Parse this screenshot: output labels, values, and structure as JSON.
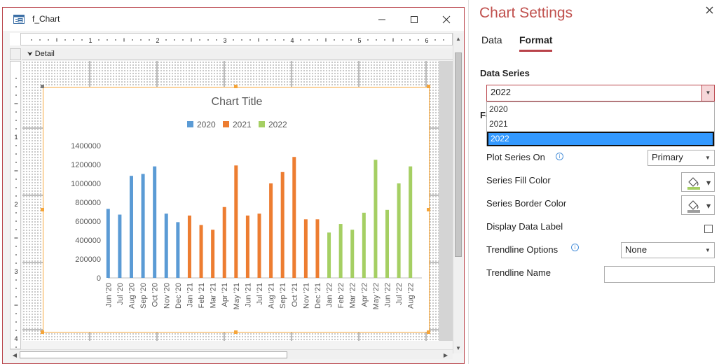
{
  "form": {
    "title": "f_Chart",
    "section": "Detail",
    "ruler_h_marks": [
      "1",
      "2",
      "3",
      "4",
      "5",
      "6"
    ],
    "ruler_v_marks": [
      "1",
      "2",
      "3",
      "4"
    ]
  },
  "chart_data": {
    "type": "bar",
    "title": "Chart Title",
    "legend_position": "top",
    "ylim": [
      0,
      1400000
    ],
    "yticks": [
      "1400000",
      "1200000",
      "1000000",
      "800000",
      "600000",
      "400000",
      "200000",
      "0"
    ],
    "categories": [
      "Jun '20",
      "Jul '20",
      "Aug '20",
      "Sep '20",
      "Oct '20",
      "Nov '20",
      "Dec '20",
      "Jan '21",
      "Feb '21",
      "Mar '21",
      "Apr '21",
      "May '21",
      "Jun '21",
      "Jul '21",
      "Aug '21",
      "Sep '21",
      "Oct '21",
      "Nov '21",
      "Dec '21",
      "Jan '22",
      "Feb '22",
      "Mar '22",
      "Apr '22",
      "May '22",
      "Jun '22",
      "Jul '22",
      "Aug '22"
    ],
    "series": [
      {
        "name": "2020",
        "color": "#5b9bd5",
        "values": [
          730000,
          670000,
          1080000,
          1100000,
          1180000,
          680000,
          590000,
          null,
          null,
          null,
          null,
          null,
          null,
          null,
          null,
          null,
          null,
          null,
          null,
          null,
          null,
          null,
          null,
          null,
          null,
          null,
          null
        ]
      },
      {
        "name": "2021",
        "color": "#ed7d31",
        "values": [
          null,
          null,
          null,
          null,
          null,
          null,
          null,
          660000,
          560000,
          510000,
          750000,
          1190000,
          660000,
          680000,
          1000000,
          1120000,
          1280000,
          620000,
          620000,
          null,
          null,
          null,
          null,
          null,
          null,
          null,
          null
        ]
      },
      {
        "name": "2022",
        "color": "#a5cf63",
        "values": [
          null,
          null,
          null,
          null,
          null,
          null,
          null,
          null,
          null,
          null,
          null,
          null,
          null,
          null,
          null,
          null,
          null,
          null,
          null,
          480000,
          570000,
          510000,
          690000,
          1250000,
          720000,
          1000000,
          1180000
        ]
      }
    ]
  },
  "settings": {
    "title": "Chart Settings",
    "tabs": [
      "Data",
      "Format"
    ],
    "active_tab": "Format",
    "data_series_label": "Data Series",
    "data_series_value": "2022",
    "dropdown_options": [
      "2020",
      "2021",
      "2022"
    ],
    "hidden_label_fragment": "Fo",
    "plot_series_on_label": "Plot Series On",
    "plot_series_on_value": "Primary",
    "series_fill_color_label": "Series Fill Color",
    "series_fill_color": "#a5cf63",
    "series_border_color_label": "Series Border Color",
    "series_border_color": "#9e9e9e",
    "display_data_label_label": "Display Data Label",
    "display_data_label_checked": false,
    "trendline_options_label": "Trendline Options",
    "trendline_options_value": "None",
    "trendline_name_label": "Trendline Name",
    "trendline_name_value": ""
  },
  "colors": {
    "accent": "#b9434a",
    "title": "#c0504d",
    "selection": "#3399ff",
    "chart_border": "#f5a53a"
  }
}
